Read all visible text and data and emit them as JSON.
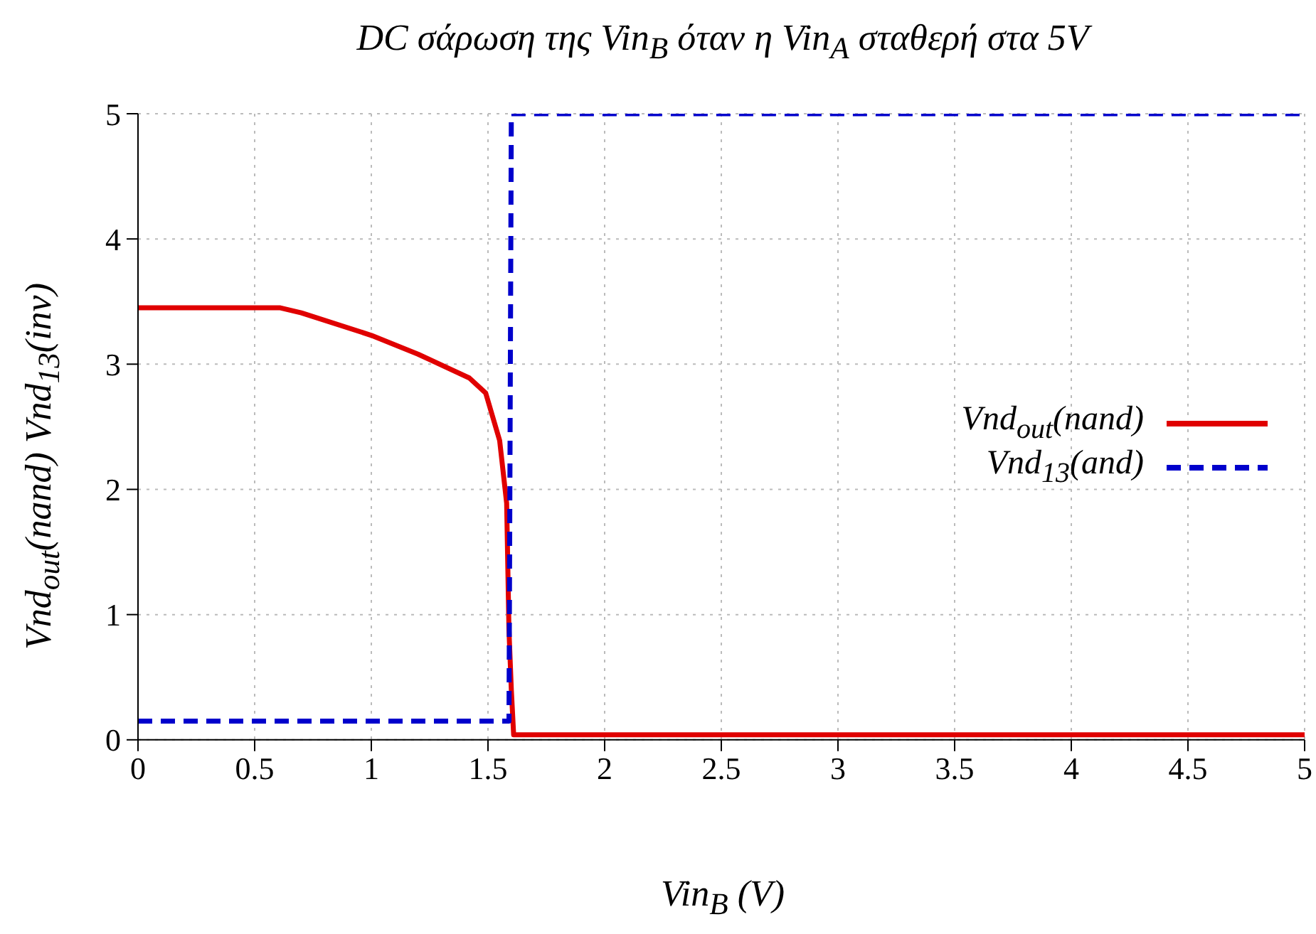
{
  "chart_data": {
    "type": "line",
    "title": "DC σάρωση της Vin$_{B}$ όταν η Vin$_{A}$ σταθερή στα 5V",
    "xlabel": "Vin$_{B}$ (V)",
    "ylabel": "Vnd$_{out}$(nand)  Vnd$_{13}$(inv)",
    "xlim": [
      0,
      5
    ],
    "xticks": [
      0,
      0.5,
      1,
      1.5,
      2,
      2.5,
      3,
      3.5,
      4,
      4.5,
      5
    ],
    "ylim": [
      0,
      5
    ],
    "yticks": [
      0,
      1,
      2,
      3,
      4,
      5
    ],
    "grid": true,
    "legend": "right",
    "series": [
      {
        "name": "Vnd$_{out}$(nand)",
        "color": "#e00000",
        "line_style": "solid",
        "x": [
          0,
          0.3,
          0.61,
          0.7,
          1.0,
          1.2,
          1.42,
          1.49,
          1.55,
          1.58,
          1.59,
          1.6,
          1.61,
          2,
          3,
          4,
          5
        ],
        "values": [
          3.45,
          3.45,
          3.45,
          3.41,
          3.23,
          3.08,
          2.89,
          2.77,
          2.39,
          1.89,
          0.87,
          0.4,
          0.04,
          0.04,
          0.04,
          0.04,
          0.04
        ]
      },
      {
        "name": "Vnd$_{13}$(and)",
        "color": "#0000cc",
        "line_style": "dashed",
        "x": [
          0,
          0.5,
          1,
          1.59,
          1.6,
          2,
          3,
          4,
          5
        ],
        "values": [
          0.15,
          0.15,
          0.15,
          0.15,
          5,
          5,
          5,
          5,
          5
        ]
      }
    ]
  }
}
